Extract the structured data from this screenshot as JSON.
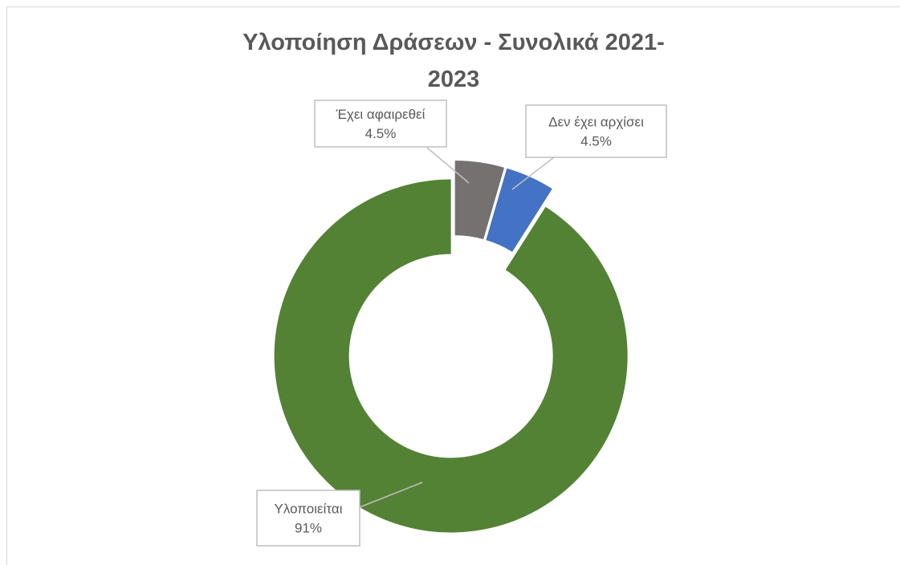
{
  "chart_data": {
    "type": "donut",
    "title": "Υλοποίηση Δράσεων - Συνολικά 2021-2023",
    "categories": [
      "Έχει αφαιρεθεί",
      "Δεν έχει αρχίσει",
      "Υλοποιείται"
    ],
    "values": [
      4.5,
      4.5,
      91
    ],
    "value_labels": [
      "4.5%",
      "4.5%",
      "91%"
    ],
    "colors": [
      "#767171",
      "#4472c4",
      "#548235"
    ]
  }
}
